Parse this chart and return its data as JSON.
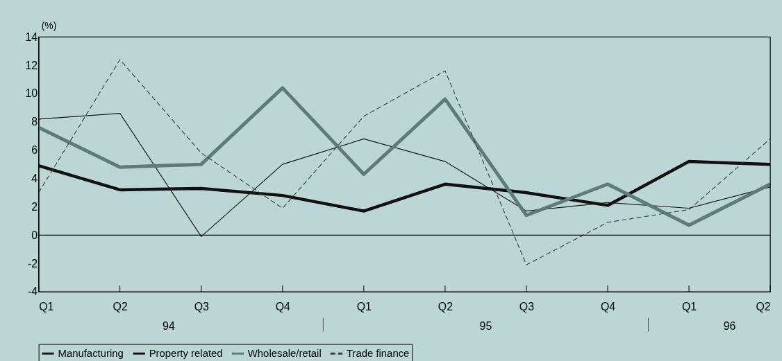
{
  "chart_data": {
    "type": "line",
    "ylabel": "(%)",
    "categories": [
      "Q1",
      "Q2",
      "Q3",
      "Q4",
      "Q1",
      "Q2",
      "Q3",
      "Q4",
      "Q1",
      "Q2"
    ],
    "series": [
      {
        "name": "Manufacturing",
        "color": "#1a1a1a",
        "line_style": "solid",
        "values": [
          8.2,
          8.6,
          -0.1,
          5.0,
          6.8,
          5.2,
          1.7,
          2.3,
          1.9,
          3.4
        ]
      },
      {
        "name": "Property related",
        "color": "#111111",
        "line_style": "solid",
        "values": [
          4.9,
          3.2,
          3.3,
          2.8,
          1.7,
          3.6,
          3.0,
          2.1,
          5.2,
          5.0
        ]
      },
      {
        "name": "Wholesale/retail",
        "color": "#5b7c7a",
        "line_style": "solid",
        "values": [
          7.6,
          4.8,
          5.0,
          10.4,
          4.3,
          9.6,
          1.4,
          3.6,
          0.7,
          3.6
        ]
      },
      {
        "name": "Trade finance",
        "color": "#3a3a3a",
        "line_style": "dashed",
        "values": [
          3.0,
          12.4,
          5.8,
          1.9,
          8.4,
          11.6,
          -2.1,
          0.9,
          1.8,
          6.8
        ]
      }
    ],
    "ylim": [
      -4,
      14
    ],
    "yticks": [
      -4,
      -2,
      0,
      2,
      4,
      6,
      8,
      10,
      12,
      14
    ],
    "ref_lines": [
      {
        "axis": "y",
        "value": 0,
        "color": "#000000"
      }
    ],
    "annotations": [
      "94",
      "95",
      "96"
    ],
    "grid": false,
    "legend": "bottom"
  }
}
